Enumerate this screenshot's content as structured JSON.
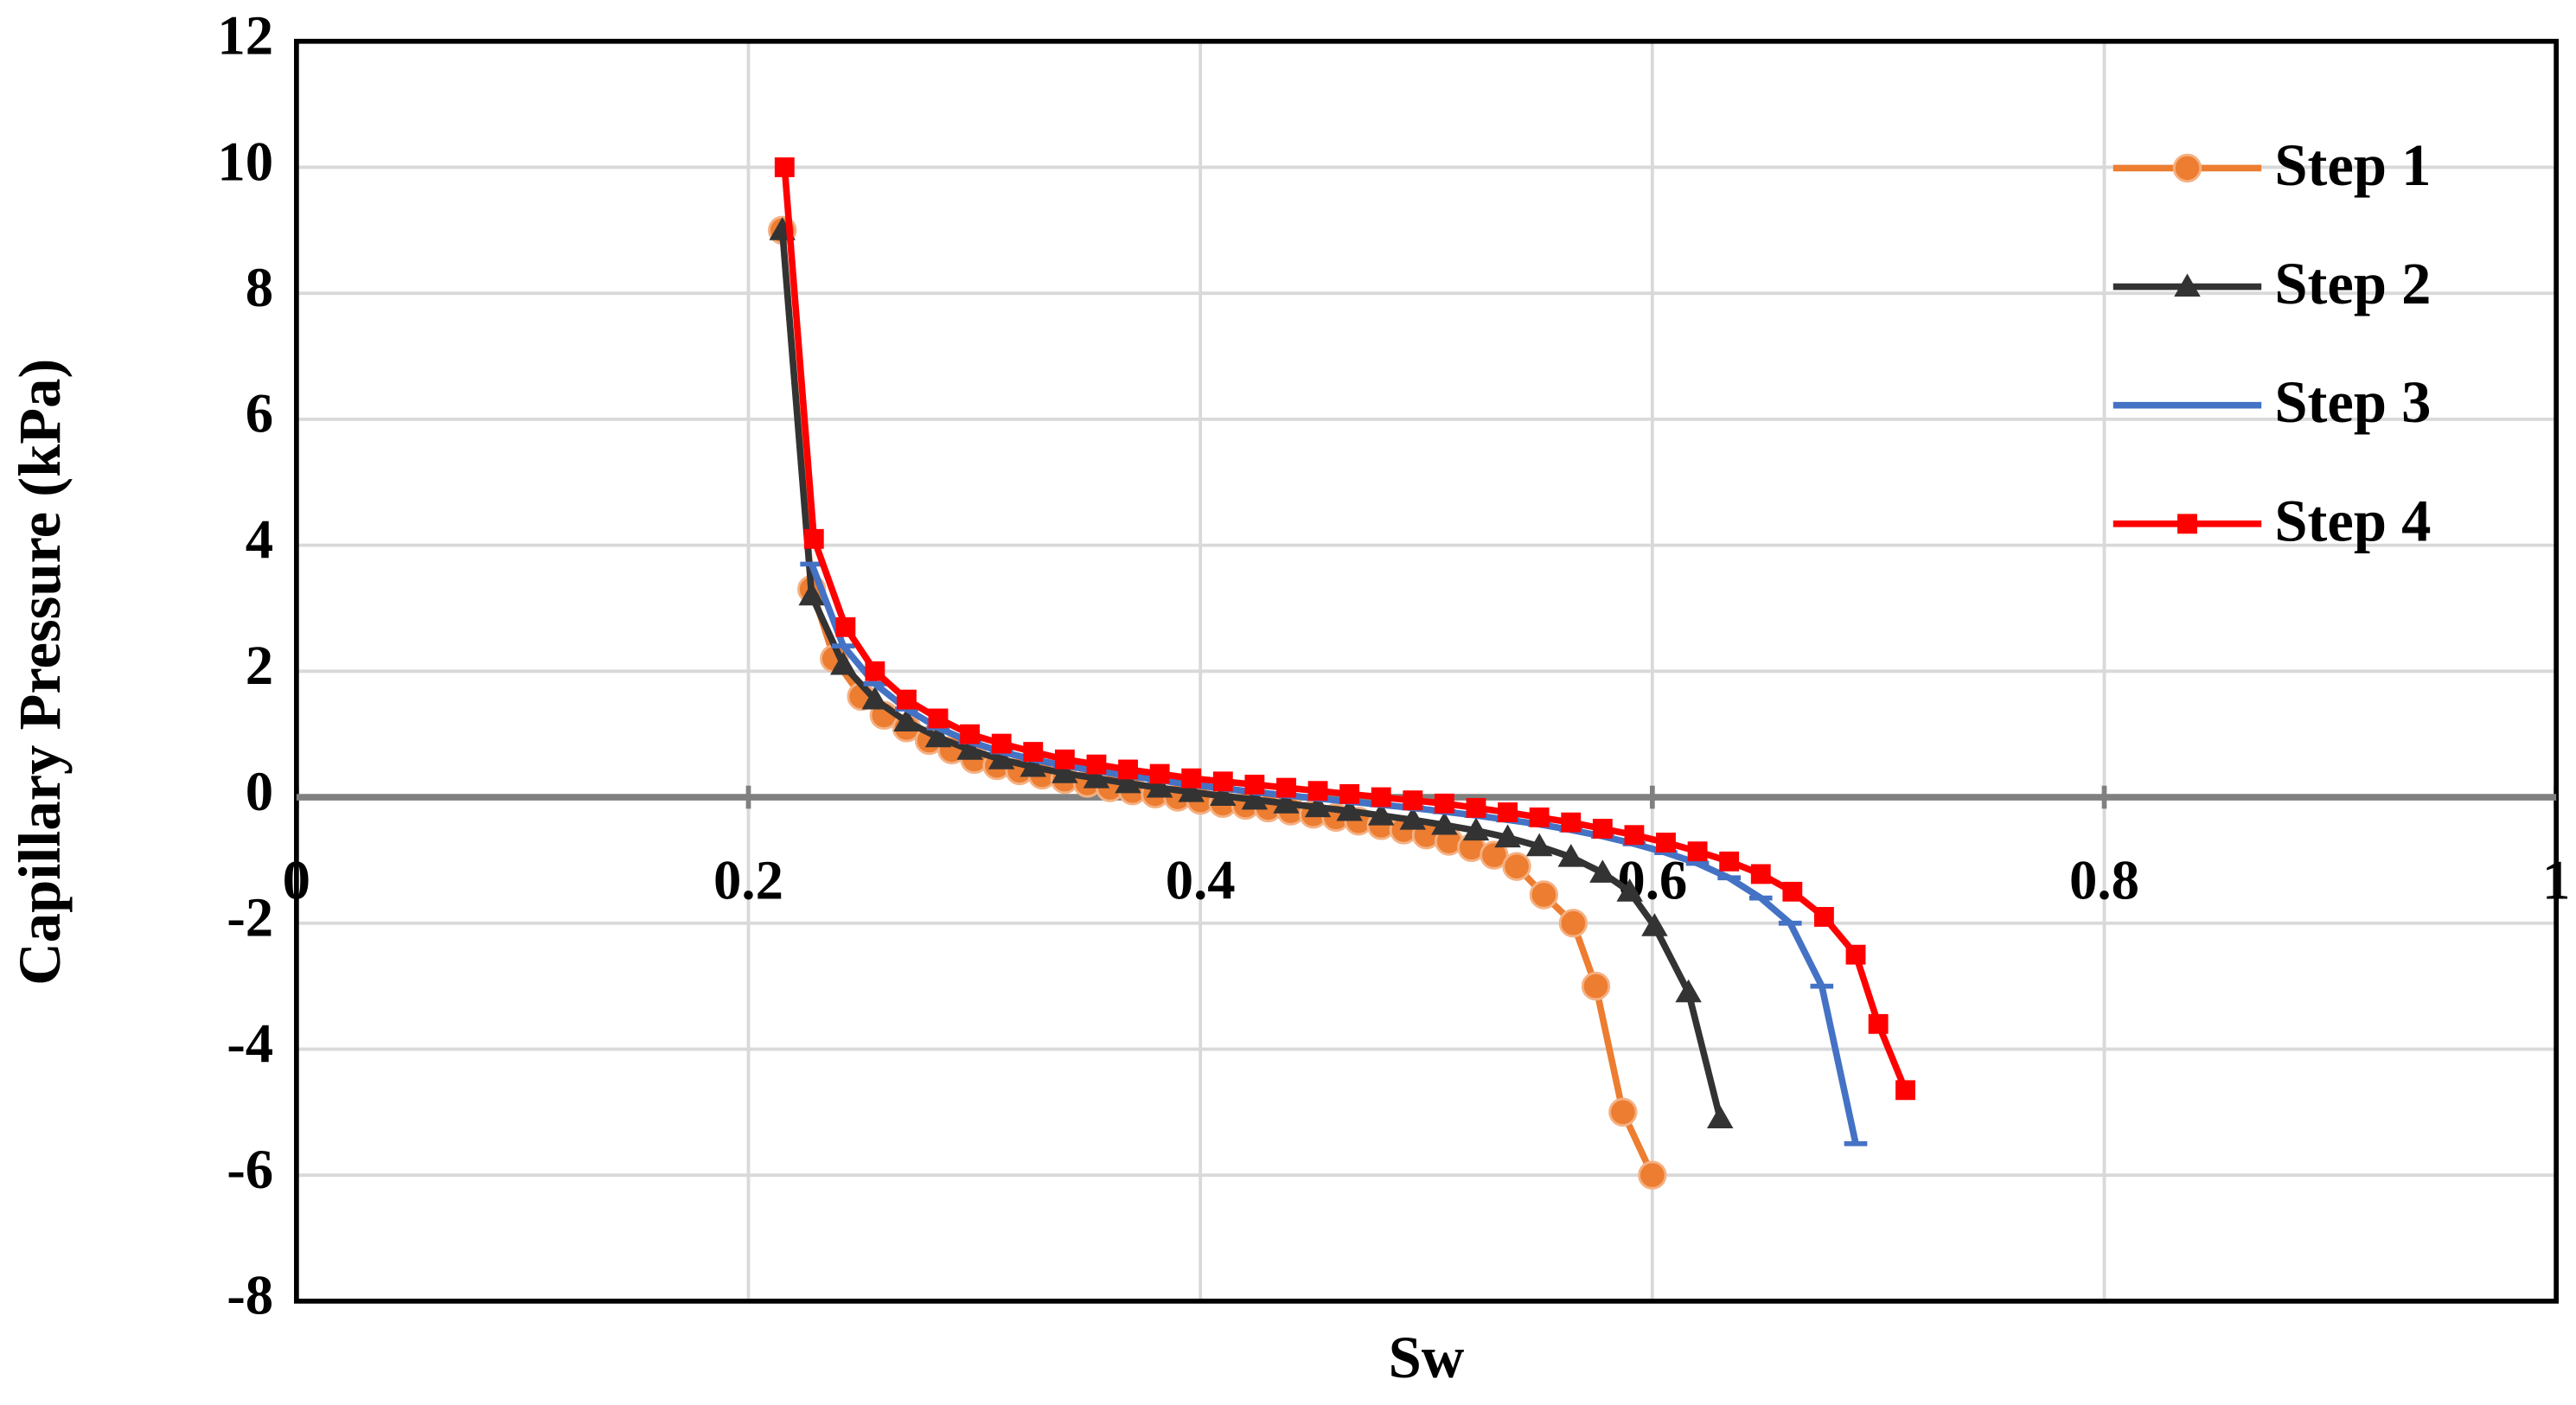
{
  "chart_data": {
    "type": "line",
    "xlabel": "Sw",
    "ylabel": "Capillary Pressure (kPa)",
    "xlim": [
      0,
      1
    ],
    "xticks": [
      0,
      0.2,
      0.4,
      0.6,
      0.8,
      1
    ],
    "ylim": [
      -8,
      12
    ],
    "yticks": [
      -8,
      -6,
      -4,
      -2,
      0,
      2,
      4,
      6,
      8,
      10,
      12
    ],
    "grid": true,
    "legend": "upper right",
    "series": [
      {
        "name": "Step 1",
        "color": "#ed7d31",
        "marker": "circle",
        "x": [
          0.215,
          0.228,
          0.238,
          0.25,
          0.26,
          0.27,
          0.28,
          0.29,
          0.3,
          0.31,
          0.32,
          0.33,
          0.34,
          0.35,
          0.36,
          0.37,
          0.38,
          0.39,
          0.4,
          0.41,
          0.42,
          0.43,
          0.44,
          0.45,
          0.46,
          0.47,
          0.48,
          0.49,
          0.5,
          0.51,
          0.52,
          0.53,
          0.54,
          0.552,
          0.565,
          0.575,
          0.587,
          0.6
        ],
        "values": [
          9,
          3.3,
          2.2,
          1.6,
          1.3,
          1.1,
          0.9,
          0.75,
          0.6,
          0.5,
          0.42,
          0.35,
          0.28,
          0.22,
          0.15,
          0.1,
          0.05,
          0,
          -0.05,
          -0.1,
          -0.13,
          -0.17,
          -0.22,
          -0.27,
          -0.32,
          -0.38,
          -0.45,
          -0.52,
          -0.6,
          -0.7,
          -0.8,
          -0.92,
          -1.1,
          -1.55,
          -2,
          -3,
          -5,
          -6
        ]
      },
      {
        "name": "Step 2",
        "color": "#333333",
        "marker": "triangle",
        "x": [
          0.215,
          0.228,
          0.242,
          0.256,
          0.27,
          0.284,
          0.298,
          0.312,
          0.326,
          0.34,
          0.354,
          0.368,
          0.382,
          0.396,
          0.41,
          0.424,
          0.438,
          0.452,
          0.466,
          0.48,
          0.494,
          0.508,
          0.522,
          0.536,
          0.55,
          0.564,
          0.578,
          0.59,
          0.601,
          0.616,
          0.63
        ],
        "values": [
          9,
          3.2,
          2.1,
          1.55,
          1.2,
          0.95,
          0.75,
          0.6,
          0.48,
          0.38,
          0.3,
          0.22,
          0.15,
          0.08,
          0.02,
          -0.04,
          -0.1,
          -0.16,
          -0.22,
          -0.29,
          -0.36,
          -0.44,
          -0.53,
          -0.64,
          -0.78,
          -0.95,
          -1.2,
          -1.5,
          -2.05,
          -3.1,
          -5.1
        ]
      },
      {
        "name": "Step 3",
        "color": "#4472c4",
        "marker": "dash",
        "x": [
          0.228,
          0.242,
          0.256,
          0.27,
          0.284,
          0.298,
          0.312,
          0.326,
          0.34,
          0.354,
          0.368,
          0.382,
          0.396,
          0.41,
          0.424,
          0.438,
          0.452,
          0.466,
          0.48,
          0.494,
          0.508,
          0.522,
          0.536,
          0.55,
          0.564,
          0.578,
          0.592,
          0.606,
          0.62,
          0.634,
          0.648,
          0.661,
          0.675,
          0.69
        ],
        "values": [
          3.7,
          2.4,
          1.8,
          1.4,
          1.1,
          0.88,
          0.72,
          0.6,
          0.5,
          0.42,
          0.34,
          0.27,
          0.2,
          0.14,
          0.08,
          0.03,
          -0.02,
          -0.07,
          -0.12,
          -0.17,
          -0.23,
          -0.29,
          -0.36,
          -0.43,
          -0.52,
          -0.62,
          -0.74,
          -0.88,
          -1.05,
          -1.28,
          -1.6,
          -2.0,
          -3.0,
          -5.5
        ]
      },
      {
        "name": "Step 4",
        "color": "#ff0000",
        "marker": "square",
        "x": [
          0.216,
          0.229,
          0.243,
          0.256,
          0.27,
          0.284,
          0.298,
          0.312,
          0.326,
          0.34,
          0.354,
          0.368,
          0.382,
          0.396,
          0.41,
          0.424,
          0.438,
          0.452,
          0.466,
          0.48,
          0.494,
          0.508,
          0.522,
          0.536,
          0.55,
          0.564,
          0.578,
          0.592,
          0.606,
          0.62,
          0.634,
          0.648,
          0.662,
          0.676,
          0.69,
          0.7,
          0.712
        ],
        "values": [
          10,
          4.1,
          2.7,
          2.0,
          1.55,
          1.25,
          1.0,
          0.85,
          0.72,
          0.6,
          0.52,
          0.44,
          0.37,
          0.3,
          0.25,
          0.2,
          0.15,
          0.1,
          0.05,
          0,
          -0.05,
          -0.1,
          -0.17,
          -0.24,
          -0.32,
          -0.4,
          -0.5,
          -0.6,
          -0.72,
          -0.86,
          -1.02,
          -1.22,
          -1.5,
          -1.9,
          -2.5,
          -3.6,
          -4.65
        ]
      }
    ]
  }
}
